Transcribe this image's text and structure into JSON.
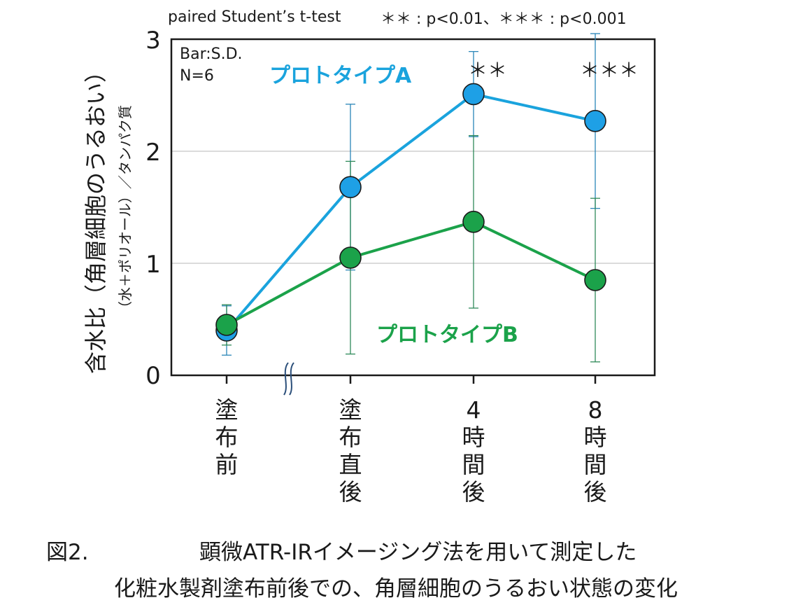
{
  "chart_data": {
    "type": "line",
    "test_note": "paired Student’s t-test",
    "significance_legend": "＊＊ : p<0.01、＊＊＊ : p<0.001",
    "bar_note": "Bar:S.D.",
    "n_note": "N=6",
    "ylabel_main": "含水比（角層細胞のうるおい）",
    "ylabel_sub": "（水＋ポリオール）／タンパク質",
    "yticks": [
      "0",
      "1",
      "2",
      "3"
    ],
    "ylim": [
      0,
      3
    ],
    "categories": [
      "塗布前",
      "塗布直後",
      "4時間後",
      "8時間後"
    ],
    "series": [
      {
        "name": "プロトタイプA",
        "color": "#1aa3dd",
        "values": [
          0.4,
          1.68,
          2.51,
          2.27
        ],
        "sd": [
          0.22,
          0.74,
          0.38,
          0.78
        ]
      },
      {
        "name": "プロトタイプB",
        "color": "#1ba24a",
        "values": [
          0.45,
          1.05,
          1.37,
          0.85
        ],
        "sd": [
          0.18,
          0.86,
          0.77,
          0.73
        ]
      }
    ],
    "significance": [
      "",
      "",
      "＊＊",
      "＊＊＊"
    ]
  },
  "caption": {
    "label": "図2.",
    "line1": "顕微ATR-IRイメージング法を用いて測定した",
    "line2": "化粧水製剤塗布前後での、角層細胞のうるおい状態の変化"
  }
}
